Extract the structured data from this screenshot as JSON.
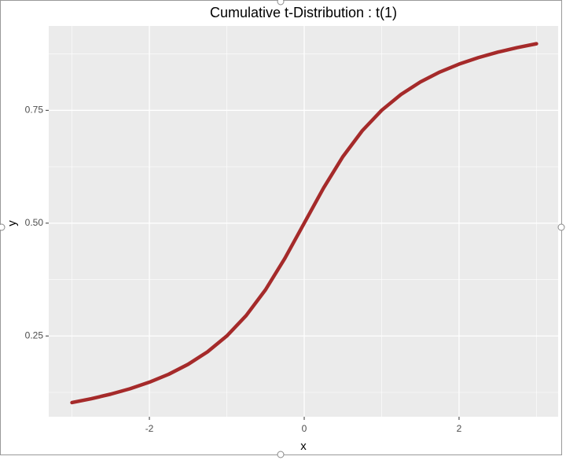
{
  "chart_data": {
    "type": "line",
    "title": "Cumulative t-Distribution : t(1)",
    "x_label": "x",
    "y_label": "y",
    "x": [
      -3,
      -2.75,
      -2.5,
      -2.25,
      -2,
      -1.75,
      -1.5,
      -1.25,
      -1,
      -0.75,
      -0.5,
      -0.25,
      0,
      0.25,
      0.5,
      0.75,
      1,
      1.25,
      1.5,
      1.75,
      2,
      2.25,
      2.5,
      2.75,
      3
    ],
    "series": [
      {
        "color": "#a52a2a",
        "values": [
          0.1024,
          0.111,
          0.1211,
          0.1331,
          0.1476,
          0.1652,
          0.1872,
          0.2148,
          0.25,
          0.2952,
          0.3524,
          0.422,
          0.5,
          0.578,
          0.6476,
          0.7048,
          0.75,
          0.7852,
          0.8128,
          0.8348,
          0.8524,
          0.8669,
          0.8789,
          0.889,
          0.8976
        ]
      }
    ],
    "xlim": [
      -3.3,
      3.28
    ],
    "ylim": [
      0.071,
      0.937
    ],
    "xticks": [
      -2,
      0,
      2
    ],
    "yticks": [
      {
        "value": 0.25,
        "label": "0.25"
      },
      {
        "value": 0.5,
        "label": "0.50"
      },
      {
        "value": 0.75,
        "label": "0.75"
      }
    ],
    "x_minor_grid": [
      -3,
      -1,
      1,
      3
    ],
    "y_minor_grid": [
      0.125,
      0.375,
      0.625,
      0.875
    ],
    "grid": true
  }
}
